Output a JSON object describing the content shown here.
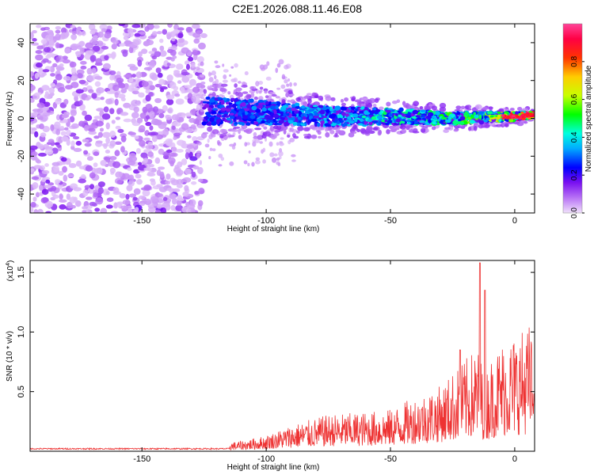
{
  "title": "C2E1.2026.088.11.46.E08",
  "chart_data": [
    {
      "type": "heatmap",
      "title": "C2E1.2026.088.11.46.E08",
      "xlabel": "Height of straight line (km)",
      "ylabel": "Frequency (Hz)",
      "xlim": [
        -195,
        8
      ],
      "ylim": [
        -50,
        50
      ],
      "xticks": [
        -150,
        -100,
        -50,
        0
      ],
      "yticks": [
        -40,
        -20,
        0,
        20,
        40
      ],
      "description_points": {
        "noise_region_x": [
          -195,
          -125
        ],
        "band_region_x": [
          -125,
          8
        ],
        "band_center_hz": [
          [
            -125,
            4
          ],
          [
            -100,
            3
          ],
          [
            -75,
            1
          ],
          [
            -50,
            1
          ],
          [
            -25,
            0
          ],
          [
            0,
            1
          ],
          [
            8,
            2
          ]
        ],
        "band_halfwidth_hz": [
          [
            -125,
            7
          ],
          [
            -100,
            6
          ],
          [
            -75,
            5
          ],
          [
            -50,
            4
          ],
          [
            -25,
            3
          ],
          [
            0,
            2
          ],
          [
            8,
            1.5
          ]
        ],
        "band_peak_amplitude": [
          [
            -125,
            0.25
          ],
          [
            -100,
            0.3
          ],
          [
            -75,
            0.35
          ],
          [
            -50,
            0.45
          ],
          [
            -25,
            0.5
          ],
          [
            -10,
            0.6
          ],
          [
            0,
            0.9
          ],
          [
            8,
            0.95
          ]
        ]
      },
      "colorbar": {
        "label": "Normalized spectral amplitude",
        "range": [
          0,
          1
        ],
        "ticks": [
          "0.0",
          "0.2",
          "0.4",
          "0.6",
          "0.8"
        ],
        "colors": [
          "#e6ccf5",
          "#8c1aff",
          "#0000ff",
          "#00e5ff",
          "#00ff00",
          "#ffff00",
          "#ff8000",
          "#ff0000",
          "#ff3399"
        ]
      }
    },
    {
      "type": "line",
      "xlabel": "Height of straight line (km)",
      "ylabel": "SNR (10 * v/v)",
      "scale_label": "(x10",
      "scale_exp": "4",
      "scale_close": ")",
      "xlim": [
        -195,
        8
      ],
      "ylim": [
        0,
        1.6
      ],
      "xticks": [
        -150,
        -100,
        -50,
        0
      ],
      "yticks": [
        "0.5",
        "1.0",
        "1.5"
      ],
      "ytick_values": [
        0.5,
        1.0,
        1.5
      ],
      "series": [
        {
          "name": "SNR",
          "color": "#ee3333",
          "envelope_x": [
            -195,
            -150,
            -125,
            -110,
            -100,
            -90,
            -75,
            -60,
            -50,
            -40,
            -30,
            -20,
            -15,
            -12,
            -10,
            -5,
            0,
            5,
            8
          ],
          "envelope_y": [
            0.03,
            0.03,
            0.04,
            0.08,
            0.12,
            0.2,
            0.28,
            0.3,
            0.32,
            0.42,
            0.5,
            0.7,
            0.8,
            0.6,
            0.7,
            0.85,
            0.9,
            0.95,
            1.05
          ],
          "spikes": [
            [
              -14,
              1.58
            ],
            [
              -12,
              1.35
            ],
            [
              -22,
              0.85
            ]
          ]
        }
      ]
    }
  ]
}
